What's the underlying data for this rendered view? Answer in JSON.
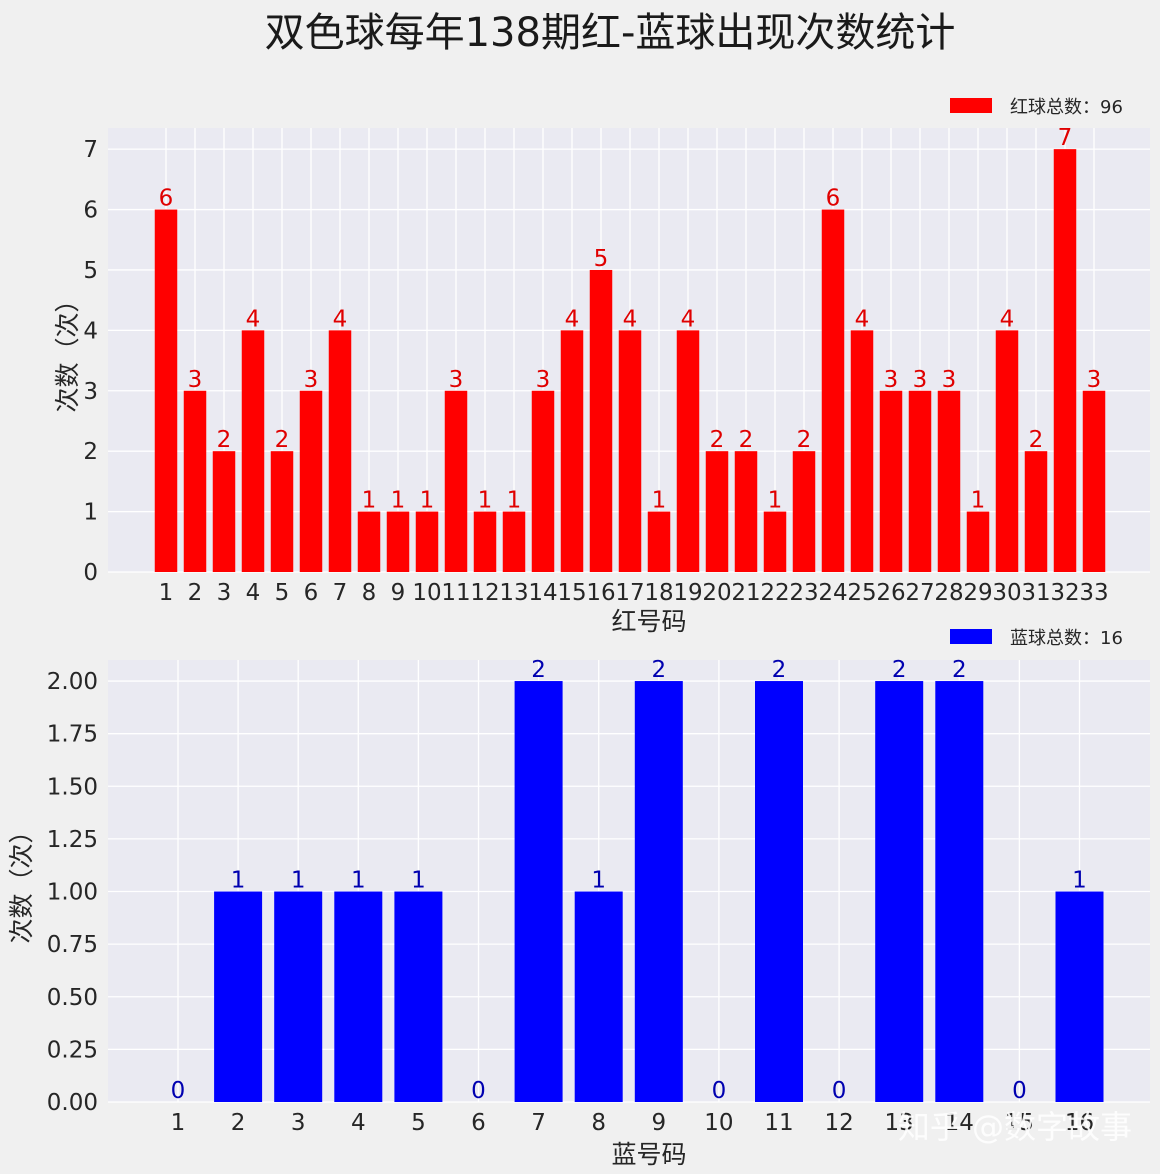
{
  "title": "双色球每年138期红-蓝球出现次数统计",
  "watermark": "知乎 @数字故事",
  "colors": {
    "red": "#ff0000",
    "red_label": "#e00000",
    "blue": "#0000ff",
    "blue_label": "#0000b0",
    "plot_bg": "#eaeaf2",
    "grid": "#ffffff"
  },
  "chart_data": [
    {
      "type": "bar",
      "xlabel": "红号码",
      "ylabel": "次数（次）",
      "legend": "红球总数：96",
      "legend_loc": "top-right",
      "grid": true,
      "ylim": [
        0,
        7.35
      ],
      "yticks": [
        0,
        1,
        2,
        3,
        4,
        5,
        6,
        7
      ],
      "ytick_labels": [
        "0",
        "1",
        "2",
        "3",
        "4",
        "5",
        "6",
        "7"
      ],
      "color": "#ff0000",
      "categories": [
        "1",
        "2",
        "3",
        "4",
        "5",
        "6",
        "7",
        "8",
        "9",
        "10",
        "11",
        "12",
        "13",
        "14",
        "15",
        "16",
        "17",
        "18",
        "19",
        "20",
        "21",
        "22",
        "23",
        "24",
        "25",
        "26",
        "27",
        "28",
        "29",
        "30",
        "31",
        "32",
        "33"
      ],
      "values": [
        6,
        3,
        2,
        4,
        2,
        3,
        4,
        1,
        1,
        1,
        3,
        1,
        1,
        3,
        4,
        5,
        4,
        1,
        4,
        2,
        2,
        1,
        2,
        6,
        4,
        3,
        3,
        3,
        1,
        4,
        2,
        7,
        3
      ],
      "data_labels": [
        "6",
        "3",
        "2",
        "4",
        "2",
        "3",
        "4",
        "1",
        "1",
        "1",
        "3",
        "1",
        "1",
        "3",
        "4",
        "5",
        "4",
        "1",
        "4",
        "2",
        "2",
        "1",
        "2",
        "6",
        "4",
        "3",
        "3",
        "3",
        "1",
        "4",
        "2",
        "7",
        "3"
      ]
    },
    {
      "type": "bar",
      "xlabel": "蓝号码",
      "ylabel": "次数（次）",
      "legend": "蓝球总数：16",
      "legend_loc": "top-right",
      "grid": true,
      "ylim": [
        0,
        2.1
      ],
      "yticks": [
        0,
        0.25,
        0.5,
        0.75,
        1.0,
        1.25,
        1.5,
        1.75,
        2.0
      ],
      "ytick_labels": [
        "0.00",
        "0.25",
        "0.50",
        "0.75",
        "1.00",
        "1.25",
        "1.50",
        "1.75",
        "2.00"
      ],
      "color": "#0000ff",
      "categories": [
        "1",
        "2",
        "3",
        "4",
        "5",
        "6",
        "7",
        "8",
        "9",
        "10",
        "11",
        "12",
        "13",
        "14",
        "15",
        "16"
      ],
      "values": [
        0,
        1,
        1,
        1,
        1,
        0,
        2,
        1,
        2,
        0,
        2,
        0,
        2,
        2,
        0,
        1
      ],
      "data_labels": [
        "0",
        "1",
        "1",
        "1",
        "1",
        "0",
        "2",
        "1",
        "2",
        "0",
        "2",
        "0",
        "2",
        "2",
        "0",
        "1"
      ]
    }
  ]
}
